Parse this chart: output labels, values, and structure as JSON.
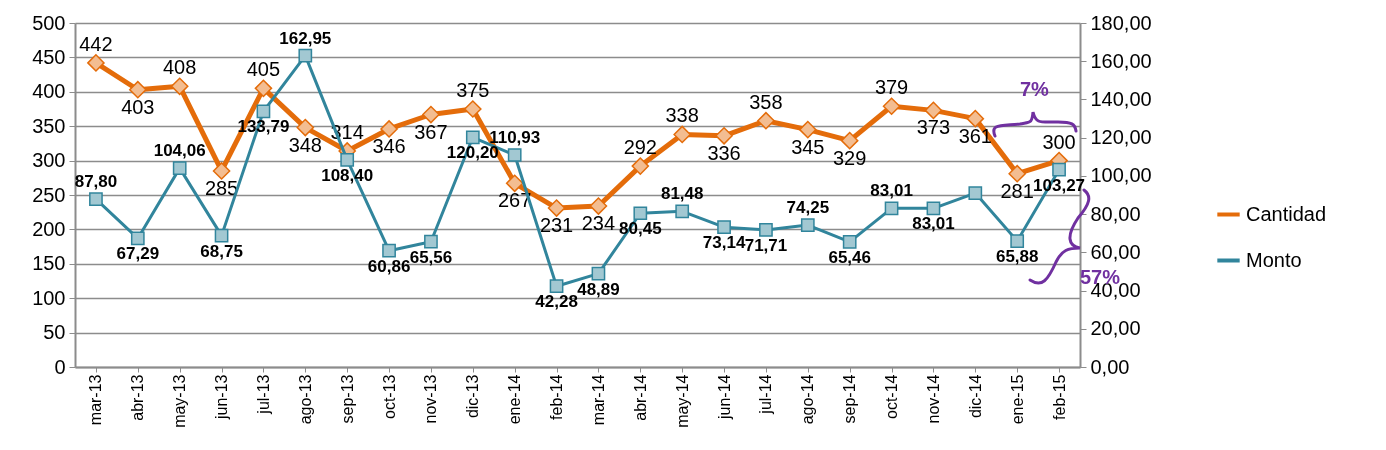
{
  "chart_data": {
    "type": "line",
    "categories": [
      "mar-13",
      "abr-13",
      "may-13",
      "jun-13",
      "jul-13",
      "ago-13",
      "sep-13",
      "oct-13",
      "nov-13",
      "dic-13",
      "ene-14",
      "feb-14",
      "mar-14",
      "abr-14",
      "may-14",
      "jun-14",
      "jul-14",
      "ago-14",
      "sep-14",
      "oct-14",
      "nov-14",
      "dic-14",
      "ene-15",
      "feb-15"
    ],
    "series": [
      {
        "name": "Cantidad",
        "color": "#e46c0a",
        "marker": "diamond",
        "values": [
          442,
          403,
          408,
          285,
          405,
          348,
          314,
          346,
          367,
          375,
          267,
          231,
          234,
          292,
          338,
          336,
          358,
          345,
          329,
          379,
          373,
          361,
          281,
          300
        ],
        "value_labels": [
          "442",
          "403",
          "408",
          "285",
          "405",
          "348",
          "314",
          "346",
          "367",
          "375",
          "267",
          "231",
          "234",
          "292",
          "338",
          "336",
          "358",
          "345",
          "329",
          "379",
          "373",
          "361",
          "281",
          "300"
        ]
      },
      {
        "name": "Monto",
        "color": "#31859c",
        "marker": "square",
        "axis": "y2",
        "values": [
          87.8,
          67.29,
          104.06,
          68.75,
          133.79,
          162.95,
          108.4,
          60.86,
          65.56,
          120.2,
          110.93,
          42.28,
          48.89,
          80.45,
          81.48,
          73.14,
          71.71,
          74.25,
          65.46,
          83.01,
          83.01,
          91,
          65.88,
          103.27
        ],
        "value_labels": [
          "87,80",
          "67,29",
          "104,06",
          "68,75",
          "133,79",
          "162,95",
          "108,40",
          "60,86",
          "65,56",
          "120,20",
          "110,93",
          "42,28",
          "48,89",
          "80,45",
          "81,48",
          "73,14",
          "71,71",
          "74,25",
          "65,46",
          "83,01",
          "83,01",
          null,
          "65,88",
          "103,27"
        ]
      }
    ],
    "ylim": [
      0,
      500
    ],
    "yticks": [
      0,
      50,
      100,
      150,
      200,
      250,
      300,
      350,
      400,
      450,
      500
    ],
    "y2lim": [
      0,
      180
    ],
    "y2ticks": [
      {
        "value": 0,
        "label": "0,00"
      },
      {
        "value": 20,
        "label": "20,00"
      },
      {
        "value": 40,
        "label": "40,00"
      },
      {
        "value": 60,
        "label": "60,00"
      },
      {
        "value": 80,
        "label": "80,00"
      },
      {
        "value": 100,
        "label": "100,00"
      },
      {
        "value": 120,
        "label": "120,00"
      },
      {
        "value": 140,
        "label": "140,00"
      },
      {
        "value": 160,
        "label": "160,00"
      },
      {
        "value": 180,
        "label": "180,00"
      }
    ],
    "grid": "y",
    "legend": "right",
    "line_style": "solid",
    "annotations": [
      "7%",
      "57%"
    ]
  }
}
